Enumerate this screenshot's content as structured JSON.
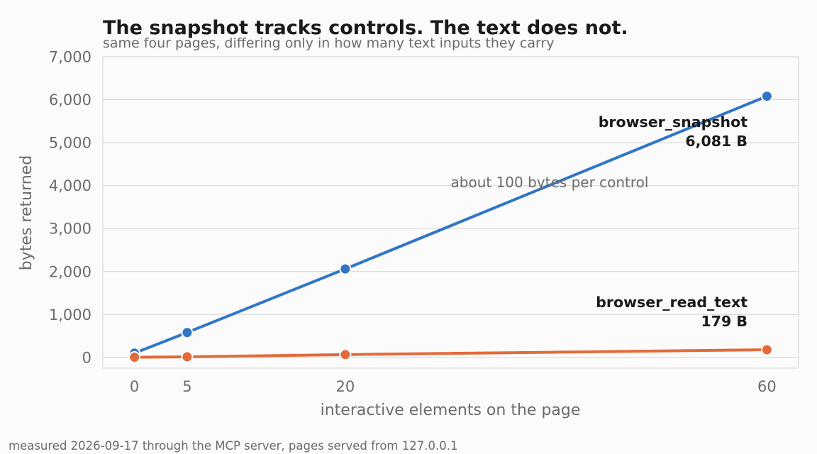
{
  "chart_data": {
    "type": "line",
    "title": "The snapshot tracks controls. The text does not.",
    "subtitle": "same four pages, differing only in how many text inputs they carry",
    "xlabel": "interactive elements on the page",
    "ylabel": "bytes returned",
    "x": [
      0,
      5,
      20,
      60
    ],
    "xticks": [
      0,
      5,
      20,
      60
    ],
    "xlim": [
      -3,
      63
    ],
    "ylim": [
      -250,
      7000
    ],
    "yticks": [
      0,
      1000,
      2000,
      3000,
      4000,
      5000,
      6000,
      7000
    ],
    "ytick_labels": [
      "0",
      "1,000",
      "2,000",
      "3,000",
      "4,000",
      "5,000",
      "6,000",
      "7,000"
    ],
    "grid": true,
    "series": [
      {
        "name": "browser_snapshot",
        "values": [
          100,
          580,
          2060,
          6081
        ],
        "color": "#3176c6",
        "end_label": "6,081 B"
      },
      {
        "name": "browser_read_text",
        "values": [
          5,
          15,
          65,
          179
        ],
        "color": "#e36a3a",
        "end_label": "179 B"
      }
    ],
    "annotation": "about 100 bytes per control",
    "footnote": "measured 2026-09-17 through the MCP server, pages served from 127.0.0.1"
  }
}
